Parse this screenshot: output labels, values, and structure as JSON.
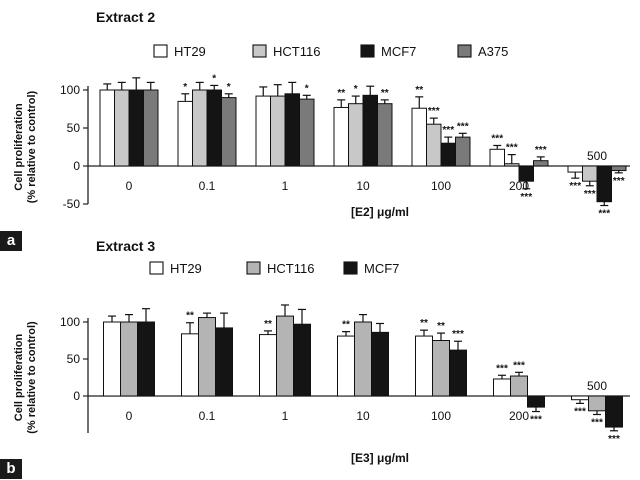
{
  "panel_labels": [
    "a",
    "b"
  ],
  "chart_data": [
    {
      "type": "bar",
      "title": "Extract 2",
      "ylabel_lines": [
        "Cell proliferation",
        "(% relative to control)"
      ],
      "xlabel": "[E2] μg/ml",
      "categories": [
        "0",
        "0.1",
        "1",
        "10",
        "100",
        "200",
        "500"
      ],
      "ylim": [
        -50,
        100
      ],
      "yticks": [
        -50,
        0,
        50,
        100
      ],
      "legend_position": "top",
      "series": [
        {
          "name": "HT29",
          "color": "#ffffff",
          "values": [
            100,
            85,
            92,
            77,
            76,
            22,
            -8
          ],
          "errors": [
            8,
            10,
            12,
            10,
            15,
            5,
            8
          ],
          "sig": [
            "",
            "*",
            "",
            "**",
            "**",
            "***",
            "***"
          ]
        },
        {
          "name": "HCT116",
          "color": "#c8c8c8",
          "values": [
            100,
            100,
            92,
            82,
            55,
            3,
            -20
          ],
          "errors": [
            10,
            10,
            15,
            10,
            8,
            12,
            6
          ],
          "sig": [
            "",
            "",
            "",
            "*",
            "***",
            "***",
            "***"
          ]
        },
        {
          "name": "MCF7",
          "color": "#141414",
          "values": [
            100,
            100,
            95,
            93,
            30,
            -20,
            -47
          ],
          "errors": [
            16,
            6,
            15,
            12,
            8,
            10,
            5
          ],
          "sig": [
            "",
            "*",
            "",
            "",
            "***",
            "***",
            "***"
          ]
        },
        {
          "name": "A375",
          "color": "#7a7a7a",
          "values": [
            100,
            90,
            88,
            82,
            38,
            7,
            -6
          ],
          "errors": [
            10,
            5,
            5,
            5,
            5,
            5,
            3
          ],
          "sig": [
            "",
            "*",
            "*",
            "**",
            "***",
            "***",
            "***"
          ]
        }
      ]
    },
    {
      "type": "bar",
      "title": "Extract 3",
      "ylabel_lines": [
        "Cell proliferation",
        "(% relative to control)"
      ],
      "xlabel": "[E3] μg/ml",
      "categories": [
        "0",
        "0.1",
        "1",
        "10",
        "100",
        "200",
        "500"
      ],
      "ylim": [
        -50,
        100
      ],
      "yticks": [
        0,
        50,
        100
      ],
      "legend_position": "top",
      "series": [
        {
          "name": "HT29",
          "color": "#ffffff",
          "values": [
            100,
            84,
            83,
            81,
            81,
            23,
            -5
          ],
          "errors": [
            8,
            15,
            5,
            6,
            8,
            5,
            5
          ],
          "sig": [
            "",
            "**",
            "**",
            "**",
            "**",
            "***",
            "***"
          ]
        },
        {
          "name": "HCT116",
          "color": "#b4b4b4",
          "values": [
            100,
            106,
            108,
            100,
            75,
            27,
            -20
          ],
          "errors": [
            10,
            6,
            15,
            10,
            10,
            5,
            5
          ],
          "sig": [
            "",
            "",
            "",
            "",
            "**",
            "***",
            "***"
          ]
        },
        {
          "name": "MCF7",
          "color": "#141414",
          "values": [
            100,
            92,
            97,
            86,
            62,
            -15,
            -42
          ],
          "errors": [
            18,
            20,
            20,
            12,
            12,
            6,
            5
          ],
          "sig": [
            "",
            "",
            "",
            "",
            "***",
            "***",
            "***"
          ]
        }
      ]
    }
  ]
}
